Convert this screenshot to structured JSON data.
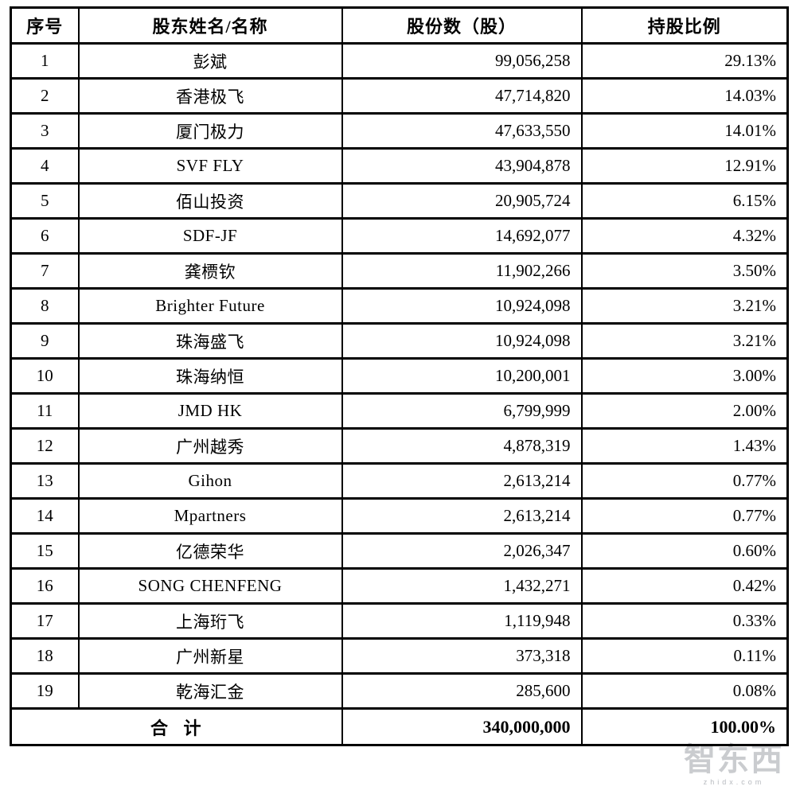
{
  "table": {
    "headers": {
      "no": "序号",
      "name": "股东姓名/名称",
      "shares": "股份数（股）",
      "pct": "持股比例"
    },
    "rows": [
      {
        "no": "1",
        "name": "彭斌",
        "shares": "99,056,258",
        "pct": "29.13%"
      },
      {
        "no": "2",
        "name": "香港极飞",
        "shares": "47,714,820",
        "pct": "14.03%"
      },
      {
        "no": "3",
        "name": "厦门极力",
        "shares": "47,633,550",
        "pct": "14.01%"
      },
      {
        "no": "4",
        "name": "SVF FLY",
        "shares": "43,904,878",
        "pct": "12.91%"
      },
      {
        "no": "5",
        "name": "佰山投资",
        "shares": "20,905,724",
        "pct": "6.15%"
      },
      {
        "no": "6",
        "name": "SDF-JF",
        "shares": "14,692,077",
        "pct": "4.32%"
      },
      {
        "no": "7",
        "name": "龚槚钦",
        "shares": "11,902,266",
        "pct": "3.50%"
      },
      {
        "no": "8",
        "name": "Brighter Future",
        "shares": "10,924,098",
        "pct": "3.21%"
      },
      {
        "no": "9",
        "name": "珠海盛飞",
        "shares": "10,924,098",
        "pct": "3.21%"
      },
      {
        "no": "10",
        "name": "珠海纳恒",
        "shares": "10,200,001",
        "pct": "3.00%"
      },
      {
        "no": "11",
        "name": "JMD HK",
        "shares": "6,799,999",
        "pct": "2.00%"
      },
      {
        "no": "12",
        "name": "广州越秀",
        "shares": "4,878,319",
        "pct": "1.43%"
      },
      {
        "no": "13",
        "name": "Gihon",
        "shares": "2,613,214",
        "pct": "0.77%"
      },
      {
        "no": "14",
        "name": "Mpartners",
        "shares": "2,613,214",
        "pct": "0.77%"
      },
      {
        "no": "15",
        "name": "亿德荣华",
        "shares": "2,026,347",
        "pct": "0.60%"
      },
      {
        "no": "16",
        "name": "SONG CHENFENG",
        "shares": "1,432,271",
        "pct": "0.42%"
      },
      {
        "no": "17",
        "name": "上海珩飞",
        "shares": "1,119,948",
        "pct": "0.33%"
      },
      {
        "no": "18",
        "name": "广州新星",
        "shares": "373,318",
        "pct": "0.11%"
      },
      {
        "no": "19",
        "name": "乾海汇金",
        "shares": "285,600",
        "pct": "0.08%"
      }
    ],
    "total": {
      "label": "合 计",
      "shares": "340,000,000",
      "pct": "100.00%"
    }
  },
  "watermark": {
    "logo": "智东西",
    "domain": "zhidx.com"
  },
  "colors": {
    "border": "#000000",
    "background": "#ffffff",
    "watermark_gray": "#9ea2a8"
  }
}
